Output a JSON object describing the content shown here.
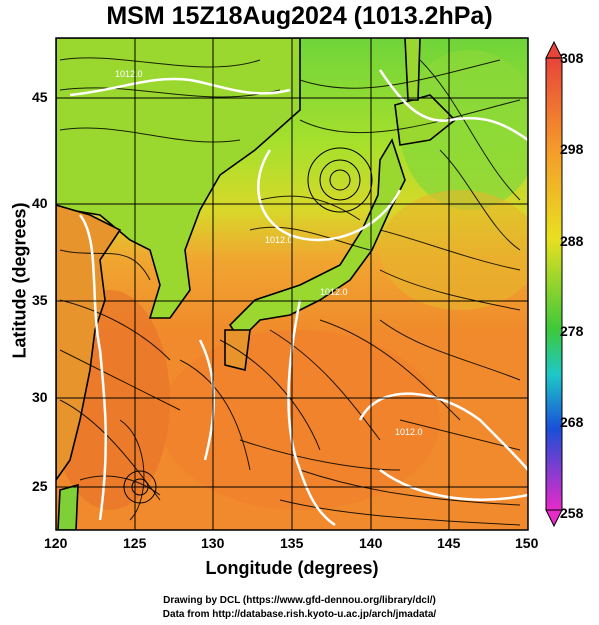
{
  "title": "MSM 15Z18Aug2024 (1013.2hPa)",
  "xlabel": "Longitude (degrees)",
  "ylabel": "Latitude  (degrees)",
  "x_ticks": [
    "120",
    "125",
    "130",
    "135",
    "140",
    "145",
    "150"
  ],
  "y_ticks": [
    "25",
    "30",
    "35",
    "40",
    "45"
  ],
  "colorbar": {
    "ticks": [
      "258",
      "268",
      "278",
      "288",
      "298",
      "308"
    ],
    "colors": {
      "top": "#e8443a",
      "orange": "#f59a2a",
      "yellow": "#e8e020",
      "green": "#3ec83a",
      "cyan": "#1ec8c8",
      "blue": "#1a4fd8",
      "bottom": "#e82ac8"
    }
  },
  "contour_labels": [
    "1012.0",
    "1012.0",
    "1012.0",
    "1012.0"
  ],
  "credits": [
    "Drawing by DCL (https://www.gfd-dennou.org/library/dcl/)",
    "Data from http://database.rish.kyoto-u.ac.jp/arch/jmadata/"
  ]
}
